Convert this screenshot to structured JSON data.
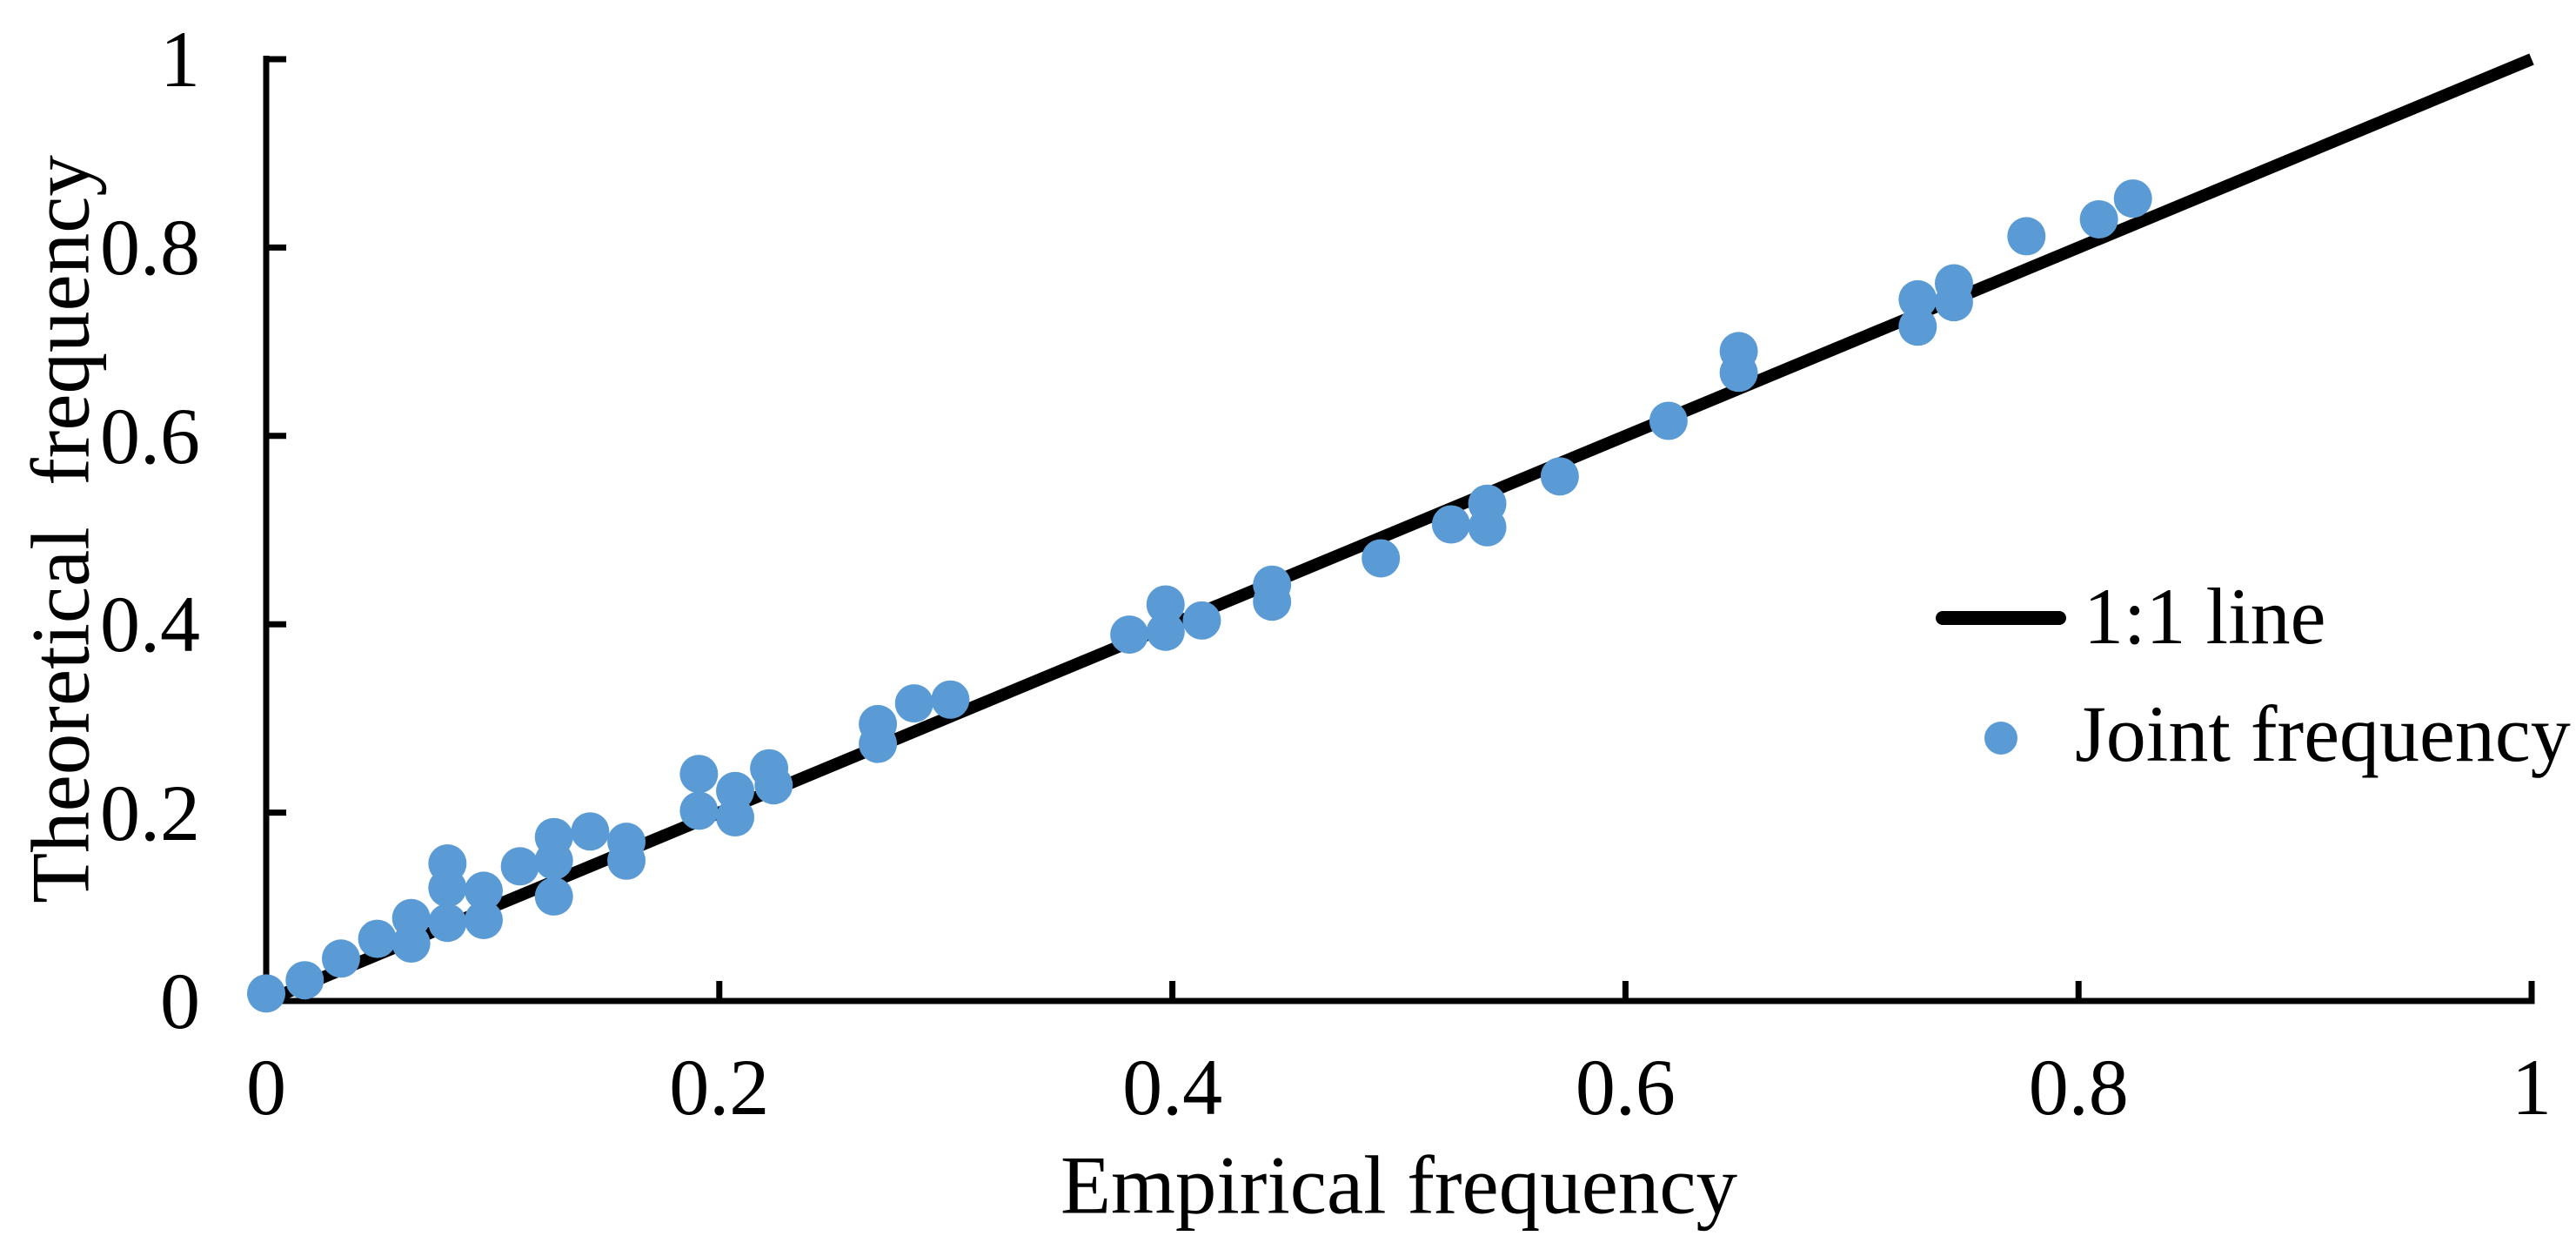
{
  "figure": {
    "background_color": "#ffffff",
    "axis_color": "#000000",
    "text_color": "#000000"
  },
  "chart_data": {
    "type": "scatter",
    "title": "",
    "xlabel": "Empirical frequency",
    "ylabel": "Theoretical frequency",
    "xlim": [
      0,
      1
    ],
    "ylim": [
      0,
      1
    ],
    "grid": false,
    "x_ticks": {
      "values": [
        0,
        0.2,
        0.4,
        0.6,
        0.8,
        1
      ],
      "labels": [
        "0",
        "0.2",
        "0.4",
        "0.6",
        "0.8",
        "1"
      ]
    },
    "y_ticks": {
      "values": [
        0,
        0.2,
        0.4,
        0.6,
        0.8,
        1
      ],
      "labels": [
        "0",
        "0.2",
        "0.4",
        "0.6",
        "0.8",
        "1"
      ]
    },
    "legend": {
      "position": "right-middle",
      "entries": [
        {
          "label": "1:1 line",
          "marker": "line",
          "color": "#000000"
        },
        {
          "label": "Joint frequency",
          "marker": "dot",
          "color": "#5B9BD5"
        }
      ]
    },
    "series": [
      {
        "name": "1:1 line",
        "type": "line",
        "color": "#000000",
        "points": [
          [
            0,
            0
          ],
          [
            1,
            1
          ]
        ]
      },
      {
        "name": "Joint frequency",
        "type": "scatter",
        "color": "#5B9BD5",
        "points": [
          [
            0.0,
            0.008
          ],
          [
            0.017,
            0.022
          ],
          [
            0.033,
            0.045
          ],
          [
            0.049,
            0.066
          ],
          [
            0.064,
            0.088
          ],
          [
            0.064,
            0.061
          ],
          [
            0.08,
            0.146
          ],
          [
            0.08,
            0.12
          ],
          [
            0.08,
            0.083
          ],
          [
            0.096,
            0.117
          ],
          [
            0.096,
            0.086
          ],
          [
            0.112,
            0.143
          ],
          [
            0.127,
            0.174
          ],
          [
            0.127,
            0.149
          ],
          [
            0.127,
            0.111
          ],
          [
            0.143,
            0.18
          ],
          [
            0.159,
            0.169
          ],
          [
            0.159,
            0.149
          ],
          [
            0.191,
            0.241
          ],
          [
            0.191,
            0.202
          ],
          [
            0.207,
            0.223
          ],
          [
            0.207,
            0.195
          ],
          [
            0.222,
            0.247
          ],
          [
            0.224,
            0.229
          ],
          [
            0.27,
            0.294
          ],
          [
            0.27,
            0.273
          ],
          [
            0.286,
            0.316
          ],
          [
            0.302,
            0.32
          ],
          [
            0.381,
            0.389
          ],
          [
            0.397,
            0.421
          ],
          [
            0.397,
            0.392
          ],
          [
            0.413,
            0.404
          ],
          [
            0.444,
            0.442
          ],
          [
            0.444,
            0.424
          ],
          [
            0.492,
            0.47
          ],
          [
            0.523,
            0.506
          ],
          [
            0.539,
            0.528
          ],
          [
            0.539,
            0.503
          ],
          [
            0.571,
            0.557
          ],
          [
            0.619,
            0.616
          ],
          [
            0.65,
            0.69
          ],
          [
            0.65,
            0.667
          ],
          [
            0.729,
            0.745
          ],
          [
            0.729,
            0.716
          ],
          [
            0.745,
            0.762
          ],
          [
            0.745,
            0.742
          ],
          [
            0.777,
            0.812
          ],
          [
            0.809,
            0.83
          ],
          [
            0.824,
            0.852
          ]
        ]
      }
    ]
  }
}
